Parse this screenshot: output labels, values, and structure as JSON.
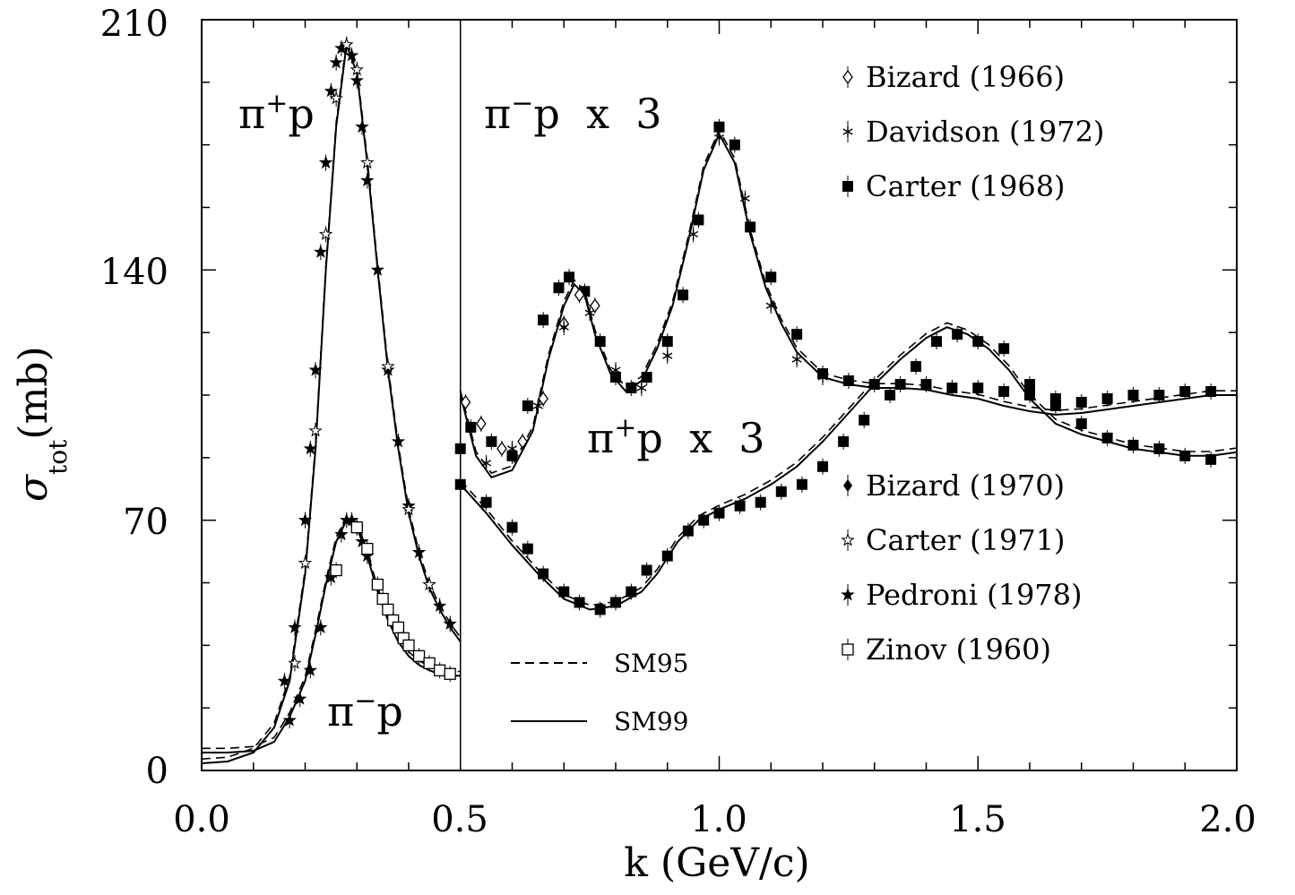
{
  "chart_data": {
    "type": "line",
    "xlabel": "k (GeV/c)",
    "ylabel": "σtot(mb)",
    "ylabel_main": "σ",
    "ylabel_sub": "tot",
    "ylabel_unit": "(mb)",
    "xlim": [
      0.0,
      2.0
    ],
    "ylim": [
      0,
      210
    ],
    "x_ticks": [
      "0.0",
      "0.5",
      "1.0",
      "1.5",
      "2.0"
    ],
    "y_ticks": [
      "0",
      "70",
      "140",
      "210"
    ],
    "divider_x": 0.5,
    "region_labels": {
      "pip_low": {
        "base": "π",
        "sup": "+",
        "tail": "p"
      },
      "pim_low": {
        "base": "π",
        "sup": "−",
        "tail": "p"
      },
      "pim_high": {
        "base": "π",
        "sup": "−",
        "tail": "p  x  3"
      },
      "pip_high": {
        "base": "π",
        "sup": "+",
        "tail": "p  x  3"
      }
    },
    "legend_top": [
      {
        "label": "Bizard (1966)",
        "marker": "diamond-open"
      },
      {
        "label": "Davidson (1972)",
        "marker": "asterisk"
      },
      {
        "label": "Carter (1968)",
        "marker": "square-filled"
      }
    ],
    "legend_bottom": [
      {
        "label": "Bizard (1970)",
        "marker": "diamond-filled"
      },
      {
        "label": "Carter (1971)",
        "marker": "star-open"
      },
      {
        "label": "Pedroni (1978)",
        "marker": "star-filled"
      },
      {
        "label": "Zinov (1960)",
        "marker": "square-open"
      }
    ],
    "model_legend": [
      {
        "label": "SM95",
        "style": "dashed"
      },
      {
        "label": "SM99",
        "style": "solid"
      }
    ],
    "curves": {
      "pip_low": [
        [
          0,
          2
        ],
        [
          0.05,
          2.5
        ],
        [
          0.1,
          5
        ],
        [
          0.14,
          12
        ],
        [
          0.17,
          25
        ],
        [
          0.2,
          55
        ],
        [
          0.22,
          90
        ],
        [
          0.24,
          140
        ],
        [
          0.26,
          180
        ],
        [
          0.28,
          203
        ],
        [
          0.3,
          195
        ],
        [
          0.32,
          170
        ],
        [
          0.34,
          140
        ],
        [
          0.36,
          112
        ],
        [
          0.38,
          90
        ],
        [
          0.4,
          72
        ],
        [
          0.42,
          60
        ],
        [
          0.44,
          51
        ],
        [
          0.46,
          45
        ],
        [
          0.48,
          40
        ],
        [
          0.5,
          36
        ]
      ],
      "pim_low": [
        [
          0,
          5
        ],
        [
          0.05,
          5
        ],
        [
          0.1,
          5.5
        ],
        [
          0.14,
          8
        ],
        [
          0.17,
          15
        ],
        [
          0.2,
          25
        ],
        [
          0.22,
          38
        ],
        [
          0.24,
          52
        ],
        [
          0.26,
          64
        ],
        [
          0.28,
          70
        ],
        [
          0.3,
          68
        ],
        [
          0.32,
          60
        ],
        [
          0.34,
          50
        ],
        [
          0.36,
          42
        ],
        [
          0.38,
          36
        ],
        [
          0.4,
          32
        ],
        [
          0.42,
          29.5
        ],
        [
          0.44,
          28
        ],
        [
          0.46,
          27
        ],
        [
          0.48,
          26.5
        ],
        [
          0.5,
          26.5
        ]
      ],
      "pim_high_sm99": [
        [
          0.5,
          105
        ],
        [
          0.53,
          88
        ],
        [
          0.56,
          82
        ],
        [
          0.6,
          84
        ],
        [
          0.64,
          95
        ],
        [
          0.67,
          115
        ],
        [
          0.7,
          130
        ],
        [
          0.72,
          136
        ],
        [
          0.74,
          133
        ],
        [
          0.76,
          122
        ],
        [
          0.79,
          111
        ],
        [
          0.82,
          106
        ],
        [
          0.85,
          109
        ],
        [
          0.88,
          118
        ],
        [
          0.91,
          130
        ],
        [
          0.94,
          148
        ],
        [
          0.97,
          168
        ],
        [
          1.0,
          178
        ],
        [
          1.03,
          170
        ],
        [
          1.06,
          150
        ],
        [
          1.09,
          135
        ],
        [
          1.12,
          125
        ],
        [
          1.15,
          117
        ],
        [
          1.2,
          110
        ],
        [
          1.25,
          108
        ],
        [
          1.3,
          107
        ],
        [
          1.35,
          107
        ],
        [
          1.4,
          106.5
        ],
        [
          1.45,
          105
        ],
        [
          1.5,
          104
        ],
        [
          1.55,
          102
        ],
        [
          1.6,
          100.5
        ],
        [
          1.65,
          99.5
        ],
        [
          1.7,
          100
        ],
        [
          1.75,
          101
        ],
        [
          1.8,
          102
        ],
        [
          1.85,
          103
        ],
        [
          1.9,
          104
        ],
        [
          1.95,
          105
        ],
        [
          2.0,
          105
        ]
      ],
      "pip_high_sm99": [
        [
          0.5,
          80
        ],
        [
          0.55,
          72
        ],
        [
          0.6,
          63
        ],
        [
          0.65,
          55
        ],
        [
          0.7,
          48
        ],
        [
          0.75,
          45
        ],
        [
          0.8,
          46
        ],
        [
          0.85,
          50
        ],
        [
          0.88,
          55
        ],
        [
          0.92,
          64
        ],
        [
          0.96,
          70
        ],
        [
          1.0,
          73
        ],
        [
          1.05,
          76
        ],
        [
          1.1,
          80
        ],
        [
          1.15,
          85
        ],
        [
          1.2,
          92
        ],
        [
          1.25,
          100
        ],
        [
          1.3,
          108
        ],
        [
          1.35,
          115
        ],
        [
          1.4,
          121
        ],
        [
          1.44,
          124
        ],
        [
          1.48,
          122
        ],
        [
          1.52,
          118
        ],
        [
          1.56,
          112
        ],
        [
          1.6,
          104
        ],
        [
          1.65,
          97
        ],
        [
          1.7,
          94
        ],
        [
          1.75,
          92
        ],
        [
          1.8,
          90
        ],
        [
          1.85,
          89
        ],
        [
          1.9,
          88
        ],
        [
          1.95,
          88
        ],
        [
          2.0,
          89
        ]
      ]
    },
    "data_points": [
      {
        "set": "Pedroni (1978)",
        "x": [
          0.16,
          0.18,
          0.2,
          0.21,
          0.22,
          0.23,
          0.24,
          0.25,
          0.26,
          0.27,
          0.28,
          0.29,
          0.3,
          0.31,
          0.32,
          0.34,
          0.36,
          0.38,
          0.4,
          0.42,
          0.44,
          0.46,
          0.48
        ],
        "y": [
          25,
          40,
          70,
          90,
          112,
          145,
          170,
          190,
          198,
          202,
          203,
          200,
          193,
          180,
          165,
          140,
          112,
          92,
          74,
          61,
          52,
          46,
          41
        ]
      },
      {
        "set": "Carter (1971)",
        "x": [
          0.18,
          0.2,
          0.22,
          0.24,
          0.26,
          0.28,
          0.3,
          0.32,
          0.36,
          0.4,
          0.44
        ],
        "y": [
          30,
          58,
          95,
          150,
          188,
          203,
          196,
          170,
          113,
          73,
          52
        ]
      },
      {
        "set": "Pedroni (1978) pi-p",
        "x": [
          0.17,
          0.19,
          0.21,
          0.23,
          0.25,
          0.27,
          0.28,
          0.29,
          0.3,
          0.31,
          0.32
        ],
        "y": [
          14,
          20,
          28,
          40,
          54,
          66,
          70,
          70,
          68,
          64,
          60
        ]
      },
      {
        "set": "Zinov (1960)",
        "x": [
          0.26,
          0.3,
          0.32,
          0.34,
          0.35,
          0.36,
          0.37,
          0.38,
          0.39,
          0.4,
          0.42,
          0.44,
          0.46,
          0.48
        ],
        "y": [
          56,
          68,
          62,
          52,
          48,
          45,
          42,
          40,
          37,
          35,
          32,
          30,
          28,
          27
        ]
      },
      {
        "set": "Carter (1968)",
        "x": [
          0.5,
          0.52,
          0.56,
          0.6,
          0.63,
          0.66,
          0.69,
          0.71,
          0.74,
          0.77,
          0.8,
          0.83,
          0.86,
          0.9,
          0.93,
          0.96,
          1.0,
          1.03,
          1.06,
          1.1,
          1.15,
          1.2,
          1.25,
          1.3,
          1.35,
          1.4,
          1.45,
          1.5,
          1.55,
          1.6,
          1.65,
          1.7,
          1.75,
          1.8,
          1.85,
          1.9,
          1.95
        ],
        "y": [
          90,
          96,
          92,
          88,
          102,
          126,
          135,
          138,
          134,
          120,
          110,
          107,
          110,
          120,
          133,
          154,
          180,
          175,
          152,
          138,
          122,
          111,
          109,
          108,
          108,
          108,
          107,
          107,
          106,
          105,
          104,
          103,
          104,
          105,
          105,
          106,
          106
        ]
      },
      {
        "set": "Bizard (1966)",
        "x": [
          0.51,
          0.54,
          0.58,
          0.62,
          0.66,
          0.7,
          0.73,
          0.76
        ],
        "y": [
          103,
          97,
          90,
          92,
          104,
          125,
          133,
          130
        ]
      },
      {
        "set": "Davidson (1972)",
        "x": [
          0.55,
          0.6,
          0.65,
          0.7,
          0.75,
          0.8,
          0.85,
          0.9,
          0.95,
          1.0,
          1.05,
          1.1,
          1.15,
          1.2
        ],
        "y": [
          86,
          90,
          102,
          124,
          128,
          112,
          107,
          116,
          150,
          177,
          160,
          130,
          115,
          110
        ]
      },
      {
        "set": "Carter (1968) pi+p",
        "x": [
          0.5,
          0.55,
          0.6,
          0.63,
          0.66,
          0.7,
          0.73,
          0.77,
          0.8,
          0.83,
          0.86,
          0.9,
          0.94,
          0.97,
          1.0,
          1.04,
          1.08,
          1.12,
          1.16,
          1.2,
          1.24,
          1.28,
          1.33,
          1.38,
          1.42,
          1.46,
          1.5,
          1.55,
          1.6,
          1.65,
          1.7,
          1.75,
          1.8,
          1.85,
          1.9,
          1.95
        ],
        "y": [
          80,
          75,
          68,
          62,
          55,
          50,
          47,
          45,
          47,
          50,
          56,
          60,
          67,
          70,
          72,
          74,
          75,
          78,
          80,
          85,
          92,
          98,
          105,
          113,
          120,
          122,
          120,
          118,
          108,
          102,
          97,
          93,
          91,
          90,
          88,
          87
        ]
      }
    ]
  }
}
